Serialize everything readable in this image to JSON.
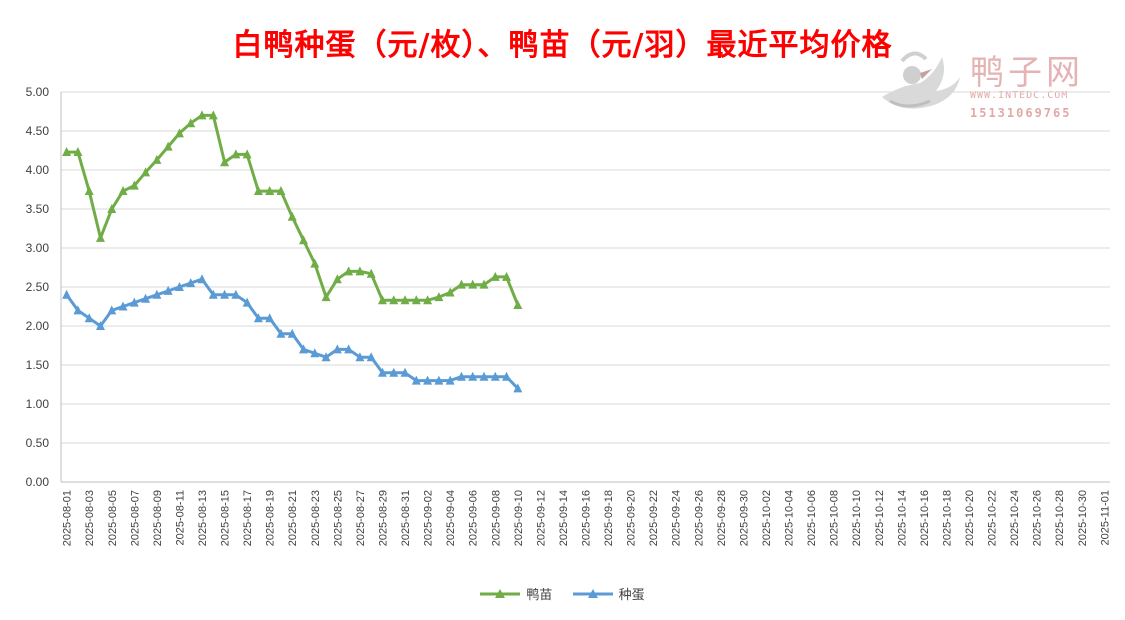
{
  "title": "白鸭种蛋（元/枚）、鸭苗（元/羽）最近平均价格",
  "watermark": {
    "brand": "鸭子网",
    "site": "WWW.INTEDC.COM",
    "phone": "15131069765",
    "logo_icon": "duck-logo-icon"
  },
  "colors": {
    "duckling": "#70ad47",
    "egg": "#5b9bd5",
    "grid": "#d9d9d9",
    "title": "#ff0000"
  },
  "chart_data": {
    "type": "line",
    "title": "白鸭种蛋（元/枚）、鸭苗（元/羽）最近平均价格",
    "xlabel": "",
    "ylabel": "",
    "ylim": [
      0,
      5
    ],
    "yticks": [
      "0.00",
      "0.50",
      "1.00",
      "1.50",
      "2.00",
      "2.50",
      "3.00",
      "3.50",
      "4.00",
      "4.50",
      "5.00"
    ],
    "x_start": "2025-08-01",
    "x_end": "2025-11-01",
    "x_tick_labels": [
      "2025-08-01",
      "2025-08-03",
      "2025-08-05",
      "2025-08-07",
      "2025-08-09",
      "2025-08-11",
      "2025-08-13",
      "2025-08-15",
      "2025-08-17",
      "2025-08-19",
      "2025-08-21",
      "2025-08-23",
      "2025-08-25",
      "2025-08-27",
      "2025-08-29",
      "2025-08-31",
      "2025-09-02",
      "2025-09-04",
      "2025-09-06",
      "2025-09-08",
      "2025-09-10",
      "2025-09-12",
      "2025-09-14",
      "2025-09-16",
      "2025-09-18",
      "2025-09-20",
      "2025-09-22",
      "2025-09-24",
      "2025-09-26",
      "2025-09-28",
      "2025-09-30",
      "2025-10-02",
      "2025-10-04",
      "2025-10-06",
      "2025-10-08",
      "2025-10-10",
      "2025-10-12",
      "2025-10-14",
      "2025-10-16",
      "2025-10-18",
      "2025-10-20",
      "2025-10-22",
      "2025-10-24",
      "2025-10-26",
      "2025-10-28",
      "2025-10-30",
      "2025-11-01"
    ],
    "grid": true,
    "legend_position": "bottom",
    "series": [
      {
        "name": "鸭苗",
        "marker": "triangle",
        "dates": [
          "2025-08-01",
          "2025-08-02",
          "2025-08-03",
          "2025-08-04",
          "2025-08-05",
          "2025-08-06",
          "2025-08-07",
          "2025-08-08",
          "2025-08-09",
          "2025-08-10",
          "2025-08-11",
          "2025-08-12",
          "2025-08-13",
          "2025-08-14",
          "2025-08-15",
          "2025-08-16",
          "2025-08-17",
          "2025-08-18",
          "2025-08-19",
          "2025-08-20",
          "2025-08-21",
          "2025-08-22",
          "2025-08-23",
          "2025-08-24",
          "2025-08-25",
          "2025-08-26",
          "2025-08-27",
          "2025-08-28",
          "2025-08-29",
          "2025-08-30",
          "2025-08-31",
          "2025-09-01",
          "2025-09-02",
          "2025-09-03",
          "2025-09-04",
          "2025-09-05",
          "2025-09-06",
          "2025-09-07",
          "2025-09-08",
          "2025-09-09",
          "2025-09-10"
        ],
        "values": [
          4.23,
          4.23,
          3.73,
          3.13,
          3.5,
          3.73,
          3.8,
          3.97,
          4.13,
          4.3,
          4.47,
          4.6,
          4.7,
          4.7,
          4.1,
          4.2,
          4.2,
          3.73,
          3.73,
          3.73,
          3.4,
          3.1,
          2.8,
          2.37,
          2.6,
          2.7,
          2.7,
          2.67,
          2.33,
          2.33,
          2.33,
          2.33,
          2.33,
          2.37,
          2.43,
          2.53,
          2.53,
          2.53,
          2.63,
          2.63,
          2.27
        ]
      },
      {
        "name": "种蛋",
        "marker": "triangle",
        "dates": [
          "2025-08-01",
          "2025-08-02",
          "2025-08-03",
          "2025-08-04",
          "2025-08-05",
          "2025-08-06",
          "2025-08-07",
          "2025-08-08",
          "2025-08-09",
          "2025-08-10",
          "2025-08-11",
          "2025-08-12",
          "2025-08-13",
          "2025-08-14",
          "2025-08-15",
          "2025-08-16",
          "2025-08-17",
          "2025-08-18",
          "2025-08-19",
          "2025-08-20",
          "2025-08-21",
          "2025-08-22",
          "2025-08-23",
          "2025-08-24",
          "2025-08-25",
          "2025-08-26",
          "2025-08-27",
          "2025-08-28",
          "2025-08-29",
          "2025-08-30",
          "2025-08-31",
          "2025-09-01",
          "2025-09-02",
          "2025-09-03",
          "2025-09-04",
          "2025-09-05",
          "2025-09-06",
          "2025-09-07",
          "2025-09-08",
          "2025-09-09",
          "2025-09-10"
        ],
        "values": [
          2.4,
          2.2,
          2.1,
          2.0,
          2.2,
          2.25,
          2.3,
          2.35,
          2.4,
          2.45,
          2.5,
          2.55,
          2.6,
          2.4,
          2.4,
          2.4,
          2.3,
          2.1,
          2.1,
          1.9,
          1.9,
          1.7,
          1.65,
          1.6,
          1.7,
          1.7,
          1.6,
          1.6,
          1.4,
          1.4,
          1.4,
          1.3,
          1.3,
          1.3,
          1.3,
          1.35,
          1.35,
          1.35,
          1.35,
          1.35,
          1.2
        ]
      }
    ]
  }
}
